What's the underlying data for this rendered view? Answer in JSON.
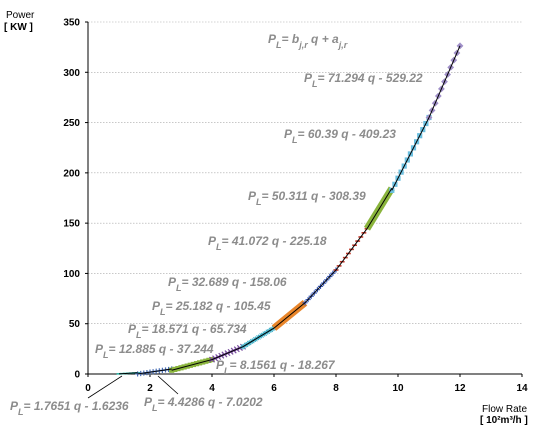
{
  "chart_data": {
    "type": "scatter",
    "title": "",
    "ylabel": [
      "Power",
      "[ KW ]"
    ],
    "xlabel": [
      "Flow Rate",
      "[ 10²m³/h ]"
    ],
    "xlim": [
      0,
      14
    ],
    "ylim": [
      0,
      350
    ],
    "xticks": [
      "0",
      "2",
      "4",
      "6",
      "8",
      "10",
      "12",
      "14"
    ],
    "yticks": [
      "0",
      "50",
      "100",
      "150",
      "200",
      "250",
      "300",
      "350"
    ],
    "grid": "horizontal",
    "curve_color": "#000000",
    "segments": [
      {
        "label": "PL= 1.7651 q - 1.6236",
        "slope": 1.7651,
        "intercept": -1.6236,
        "q_range": [
          1.0,
          1.6
        ],
        "color": "#2ab5a5",
        "marker": "dash"
      },
      {
        "label": "PL= 4.4286 q - 7.0202",
        "slope": 4.4286,
        "intercept": -7.0202,
        "q_range": [
          1.6,
          2.7
        ],
        "color": "#4a6fb5",
        "marker": "cross"
      },
      {
        "label": "PL= 8.1561 q - 18.267",
        "slope": 8.1561,
        "intercept": -18.267,
        "q_range": [
          2.7,
          4.0
        ],
        "color": "#8ab43c",
        "marker": "square"
      },
      {
        "label": "PL= 12.885 q - 37.244",
        "slope": 12.885,
        "intercept": -37.244,
        "q_range": [
          4.0,
          5.0
        ],
        "color": "#7b4fa0",
        "marker": "x"
      },
      {
        "label": "PL= 18.571 q - 65.734",
        "slope": 18.571,
        "intercept": -65.734,
        "q_range": [
          5.0,
          6.0
        ],
        "color": "#40b0c8",
        "marker": "star"
      },
      {
        "label": "PL= 25.182 q - 105.45",
        "slope": 25.182,
        "intercept": -105.45,
        "q_range": [
          6.0,
          7.0
        ],
        "color": "#e8852a",
        "marker": "thick"
      },
      {
        "label": "PL= 32.689 q - 158.06",
        "slope": 32.689,
        "intercept": -158.06,
        "q_range": [
          7.0,
          8.0
        ],
        "color": "#3a5ab8",
        "marker": "plus"
      },
      {
        "label": "PL= 41.072 q - 225.18",
        "slope": 41.072,
        "intercept": -225.18,
        "q_range": [
          8.0,
          9.0
        ],
        "color": "#c0392b",
        "marker": "dash"
      },
      {
        "label": "PL= 50.311 q - 308.39",
        "slope": 50.311,
        "intercept": -308.39,
        "q_range": [
          9.0,
          9.8
        ],
        "color": "#8ab43c",
        "marker": "thick"
      },
      {
        "label": "PL= 60.39 q - 409.23",
        "slope": 60.39,
        "intercept": -409.23,
        "q_range": [
          9.8,
          11.0
        ],
        "color": "#6cc0e0",
        "marker": "square"
      },
      {
        "label": "PL= 71.294 q - 529.22",
        "slope": 71.294,
        "intercept": -529.22,
        "q_range": [
          11.0,
          12.0
        ],
        "color": "#a090c8",
        "marker": "diamond"
      }
    ],
    "general_formula": "PL= bj,r q + aj,r"
  }
}
